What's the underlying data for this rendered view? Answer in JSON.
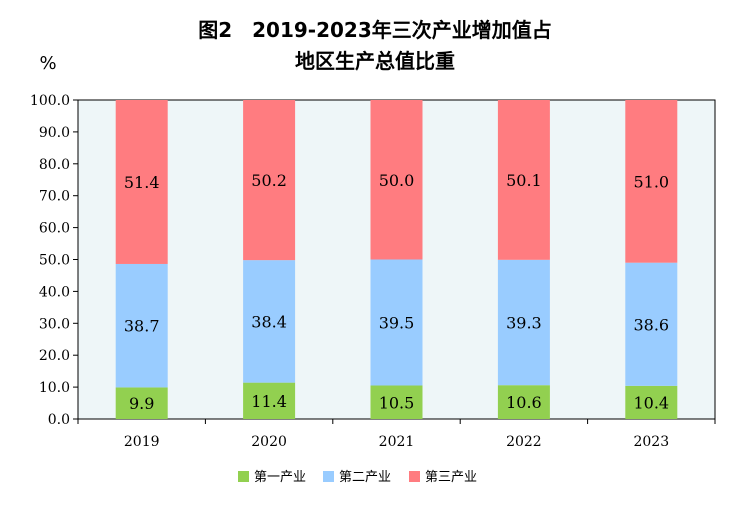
{
  "chart_data": {
    "type": "bar",
    "stacked": true,
    "title_lines": [
      "图2　2019-2023年三次产业增加值占",
      "地区生产总值比重"
    ],
    "ylabel": "%",
    "xlabel": "",
    "ylim": [
      0,
      100
    ],
    "ytick_labels": [
      "0.0",
      "10.0",
      "20.0",
      "30.0",
      "40.0",
      "50.0",
      "60.0",
      "70.0",
      "80.0",
      "90.0",
      "100.0"
    ],
    "categories": [
      "2019",
      "2020",
      "2021",
      "2022",
      "2023"
    ],
    "series": [
      {
        "name": "第一产业",
        "color": "#92d050",
        "values": [
          9.9,
          11.4,
          10.5,
          10.6,
          10.4
        ],
        "labels": [
          "9.9",
          "11.4",
          "10.5",
          "10.6",
          "10.4"
        ]
      },
      {
        "name": "第二产业",
        "color": "#99ccff",
        "values": [
          38.7,
          38.4,
          39.5,
          39.3,
          38.6
        ],
        "labels": [
          "38.7",
          "38.4",
          "39.5",
          "39.3",
          "38.6"
        ]
      },
      {
        "name": "第三产业",
        "color": "#ff7c80",
        "values": [
          51.4,
          50.2,
          50.0,
          50.1,
          51.0
        ],
        "labels": [
          "51.4",
          "50.2",
          "50.0",
          "50.1",
          "51.0"
        ]
      }
    ],
    "plot_background": "#eef6f8",
    "grid": false,
    "legend_position": "bottom"
  }
}
